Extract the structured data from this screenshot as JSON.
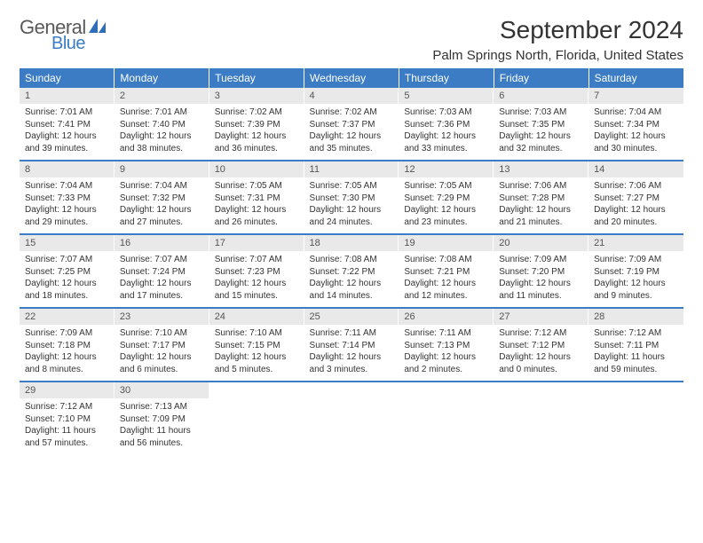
{
  "logo": {
    "text1": "General",
    "text2": "Blue"
  },
  "header": {
    "title": "September 2024",
    "location": "Palm Springs North, Florida, United States"
  },
  "colors": {
    "header_bg": "#3b7cc4",
    "daynum_bg": "#e9e9e9",
    "page_bg": "#ffffff",
    "text": "#333333",
    "logo_gray": "#5a5a5a",
    "logo_blue": "#3b7cc4"
  },
  "weekdays": [
    "Sunday",
    "Monday",
    "Tuesday",
    "Wednesday",
    "Thursday",
    "Friday",
    "Saturday"
  ],
  "days": [
    {
      "n": "1",
      "sunrise": "7:01 AM",
      "sunset": "7:41 PM",
      "dl": "12 hours and 39 minutes."
    },
    {
      "n": "2",
      "sunrise": "7:01 AM",
      "sunset": "7:40 PM",
      "dl": "12 hours and 38 minutes."
    },
    {
      "n": "3",
      "sunrise": "7:02 AM",
      "sunset": "7:39 PM",
      "dl": "12 hours and 36 minutes."
    },
    {
      "n": "4",
      "sunrise": "7:02 AM",
      "sunset": "7:37 PM",
      "dl": "12 hours and 35 minutes."
    },
    {
      "n": "5",
      "sunrise": "7:03 AM",
      "sunset": "7:36 PM",
      "dl": "12 hours and 33 minutes."
    },
    {
      "n": "6",
      "sunrise": "7:03 AM",
      "sunset": "7:35 PM",
      "dl": "12 hours and 32 minutes."
    },
    {
      "n": "7",
      "sunrise": "7:04 AM",
      "sunset": "7:34 PM",
      "dl": "12 hours and 30 minutes."
    },
    {
      "n": "8",
      "sunrise": "7:04 AM",
      "sunset": "7:33 PM",
      "dl": "12 hours and 29 minutes."
    },
    {
      "n": "9",
      "sunrise": "7:04 AM",
      "sunset": "7:32 PM",
      "dl": "12 hours and 27 minutes."
    },
    {
      "n": "10",
      "sunrise": "7:05 AM",
      "sunset": "7:31 PM",
      "dl": "12 hours and 26 minutes."
    },
    {
      "n": "11",
      "sunrise": "7:05 AM",
      "sunset": "7:30 PM",
      "dl": "12 hours and 24 minutes."
    },
    {
      "n": "12",
      "sunrise": "7:05 AM",
      "sunset": "7:29 PM",
      "dl": "12 hours and 23 minutes."
    },
    {
      "n": "13",
      "sunrise": "7:06 AM",
      "sunset": "7:28 PM",
      "dl": "12 hours and 21 minutes."
    },
    {
      "n": "14",
      "sunrise": "7:06 AM",
      "sunset": "7:27 PM",
      "dl": "12 hours and 20 minutes."
    },
    {
      "n": "15",
      "sunrise": "7:07 AM",
      "sunset": "7:25 PM",
      "dl": "12 hours and 18 minutes."
    },
    {
      "n": "16",
      "sunrise": "7:07 AM",
      "sunset": "7:24 PM",
      "dl": "12 hours and 17 minutes."
    },
    {
      "n": "17",
      "sunrise": "7:07 AM",
      "sunset": "7:23 PM",
      "dl": "12 hours and 15 minutes."
    },
    {
      "n": "18",
      "sunrise": "7:08 AM",
      "sunset": "7:22 PM",
      "dl": "12 hours and 14 minutes."
    },
    {
      "n": "19",
      "sunrise": "7:08 AM",
      "sunset": "7:21 PM",
      "dl": "12 hours and 12 minutes."
    },
    {
      "n": "20",
      "sunrise": "7:09 AM",
      "sunset": "7:20 PM",
      "dl": "12 hours and 11 minutes."
    },
    {
      "n": "21",
      "sunrise": "7:09 AM",
      "sunset": "7:19 PM",
      "dl": "12 hours and 9 minutes."
    },
    {
      "n": "22",
      "sunrise": "7:09 AM",
      "sunset": "7:18 PM",
      "dl": "12 hours and 8 minutes."
    },
    {
      "n": "23",
      "sunrise": "7:10 AM",
      "sunset": "7:17 PM",
      "dl": "12 hours and 6 minutes."
    },
    {
      "n": "24",
      "sunrise": "7:10 AM",
      "sunset": "7:15 PM",
      "dl": "12 hours and 5 minutes."
    },
    {
      "n": "25",
      "sunrise": "7:11 AM",
      "sunset": "7:14 PM",
      "dl": "12 hours and 3 minutes."
    },
    {
      "n": "26",
      "sunrise": "7:11 AM",
      "sunset": "7:13 PM",
      "dl": "12 hours and 2 minutes."
    },
    {
      "n": "27",
      "sunrise": "7:12 AM",
      "sunset": "7:12 PM",
      "dl": "12 hours and 0 minutes."
    },
    {
      "n": "28",
      "sunrise": "7:12 AM",
      "sunset": "7:11 PM",
      "dl": "11 hours and 59 minutes."
    },
    {
      "n": "29",
      "sunrise": "7:12 AM",
      "sunset": "7:10 PM",
      "dl": "11 hours and 57 minutes."
    },
    {
      "n": "30",
      "sunrise": "7:13 AM",
      "sunset": "7:09 PM",
      "dl": "11 hours and 56 minutes."
    }
  ],
  "labels": {
    "sunrise": "Sunrise: ",
    "sunset": "Sunset: ",
    "daylight": "Daylight: "
  },
  "layout": {
    "start_weekday": 0,
    "total_cells": 35
  }
}
